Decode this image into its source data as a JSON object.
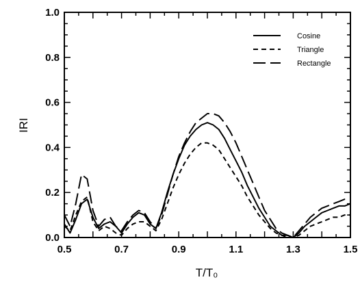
{
  "chart_data": {
    "type": "line",
    "title": "",
    "xlabel": "T/T₀",
    "ylabel": "IRI",
    "xlim": [
      0.5,
      1.5
    ],
    "ylim": [
      0.0,
      1.0
    ],
    "xticks": [
      "0.5",
      "0.7",
      "0.9",
      "1.1",
      "1.3",
      "1.5"
    ],
    "yticks": [
      "0.0",
      "0.2",
      "0.4",
      "0.6",
      "0.8",
      "1.0"
    ],
    "grid": false,
    "legend_position": "top-right",
    "series": [
      {
        "name": "Cosine",
        "style": "solid",
        "x": [
          0.5,
          0.52,
          0.54,
          0.56,
          0.58,
          0.6,
          0.62,
          0.64,
          0.66,
          0.68,
          0.7,
          0.72,
          0.74,
          0.76,
          0.78,
          0.8,
          0.82,
          0.84,
          0.86,
          0.88,
          0.9,
          0.92,
          0.94,
          0.96,
          0.98,
          1.0,
          1.02,
          1.04,
          1.06,
          1.08,
          1.1,
          1.12,
          1.14,
          1.16,
          1.18,
          1.2,
          1.22,
          1.24,
          1.26,
          1.28,
          1.3,
          1.32,
          1.34,
          1.36,
          1.38,
          1.4,
          1.42,
          1.44,
          1.46,
          1.48,
          1.5
        ],
        "y": [
          0.06,
          0.02,
          0.08,
          0.15,
          0.17,
          0.09,
          0.04,
          0.06,
          0.07,
          0.05,
          0.02,
          0.06,
          0.09,
          0.11,
          0.1,
          0.06,
          0.04,
          0.11,
          0.2,
          0.28,
          0.35,
          0.41,
          0.45,
          0.48,
          0.5,
          0.51,
          0.5,
          0.48,
          0.44,
          0.39,
          0.34,
          0.29,
          0.23,
          0.18,
          0.13,
          0.09,
          0.05,
          0.03,
          0.01,
          0.01,
          0.0,
          0.02,
          0.05,
          0.07,
          0.09,
          0.11,
          0.12,
          0.13,
          0.14,
          0.14,
          0.15
        ]
      },
      {
        "name": "Triangle",
        "style": "dashed",
        "x": [
          0.5,
          0.52,
          0.54,
          0.56,
          0.58,
          0.6,
          0.62,
          0.64,
          0.66,
          0.68,
          0.7,
          0.72,
          0.74,
          0.76,
          0.78,
          0.8,
          0.82,
          0.84,
          0.86,
          0.88,
          0.9,
          0.92,
          0.94,
          0.96,
          0.98,
          1.0,
          1.02,
          1.04,
          1.06,
          1.08,
          1.1,
          1.12,
          1.14,
          1.16,
          1.18,
          1.2,
          1.22,
          1.24,
          1.26,
          1.28,
          1.3,
          1.32,
          1.34,
          1.36,
          1.38,
          1.4,
          1.42,
          1.44,
          1.46,
          1.48,
          1.5
        ],
        "y": [
          0.05,
          0.03,
          0.1,
          0.16,
          0.18,
          0.07,
          0.03,
          0.05,
          0.04,
          0.02,
          0.01,
          0.04,
          0.06,
          0.07,
          0.07,
          0.05,
          0.03,
          0.08,
          0.15,
          0.22,
          0.28,
          0.33,
          0.37,
          0.4,
          0.42,
          0.42,
          0.41,
          0.39,
          0.35,
          0.31,
          0.27,
          0.23,
          0.18,
          0.14,
          0.1,
          0.07,
          0.04,
          0.02,
          0.01,
          0.0,
          0.0,
          0.01,
          0.03,
          0.05,
          0.06,
          0.07,
          0.08,
          0.09,
          0.09,
          0.1,
          0.1
        ]
      },
      {
        "name": "Rectangle",
        "style": "long-dash",
        "x": [
          0.5,
          0.52,
          0.54,
          0.56,
          0.58,
          0.6,
          0.62,
          0.64,
          0.66,
          0.68,
          0.7,
          0.72,
          0.74,
          0.76,
          0.78,
          0.8,
          0.82,
          0.84,
          0.86,
          0.88,
          0.9,
          0.92,
          0.94,
          0.96,
          0.98,
          1.0,
          1.02,
          1.04,
          1.06,
          1.08,
          1.1,
          1.12,
          1.14,
          1.16,
          1.18,
          1.2,
          1.22,
          1.24,
          1.26,
          1.28,
          1.3,
          1.32,
          1.34,
          1.36,
          1.38,
          1.4,
          1.42,
          1.44,
          1.46,
          1.48,
          1.5
        ],
        "y": [
          0.1,
          0.05,
          0.15,
          0.28,
          0.26,
          0.12,
          0.05,
          0.08,
          0.09,
          0.05,
          0.03,
          0.07,
          0.1,
          0.12,
          0.11,
          0.07,
          0.04,
          0.1,
          0.19,
          0.28,
          0.36,
          0.42,
          0.47,
          0.51,
          0.53,
          0.55,
          0.55,
          0.54,
          0.51,
          0.47,
          0.42,
          0.36,
          0.3,
          0.24,
          0.18,
          0.12,
          0.08,
          0.04,
          0.02,
          0.01,
          0.0,
          0.03,
          0.06,
          0.09,
          0.11,
          0.13,
          0.14,
          0.15,
          0.16,
          0.17,
          0.17
        ]
      }
    ]
  }
}
